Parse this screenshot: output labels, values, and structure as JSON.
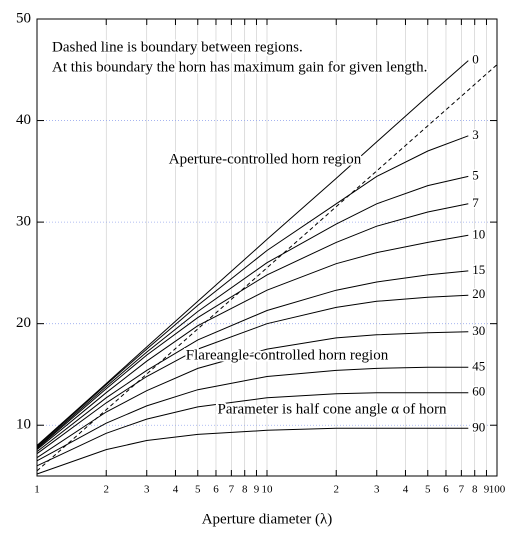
{
  "chart_data": {
    "type": "line",
    "xlabel": "Aperture diameter (λ)",
    "x": [
      1,
      2,
      3,
      5,
      10,
      20,
      30,
      50,
      75
    ],
    "series": [
      {
        "name": "0",
        "color": "#000000",
        "values": [
          8,
          14.1,
          17.7,
          22.2,
          28.3,
          34.3,
          37.9,
          42.4,
          45.9
        ]
      },
      {
        "name": "3",
        "color": "#000000",
        "values": [
          7.9,
          14,
          17.5,
          21.8,
          27.2,
          31.8,
          34.5,
          37,
          38.5
        ]
      },
      {
        "name": "5",
        "color": "#000000",
        "values": [
          7.8,
          13.8,
          17.2,
          21.2,
          26,
          29.8,
          31.8,
          33.6,
          34.5
        ]
      },
      {
        "name": "7",
        "color": "#000000",
        "values": [
          7.7,
          13.6,
          16.9,
          20.6,
          24.8,
          28,
          29.6,
          31,
          31.8
        ]
      },
      {
        "name": "10",
        "color": "#000000",
        "values": [
          7.6,
          13.2,
          16.3,
          19.8,
          23.3,
          25.9,
          27,
          28,
          28.7
        ]
      },
      {
        "name": "15",
        "color": "#000000",
        "values": [
          7.4,
          12.7,
          15.4,
          18.4,
          21.3,
          23.3,
          24.1,
          24.8,
          25.2
        ]
      },
      {
        "name": "20",
        "color": "#000000",
        "values": [
          7.2,
          12.2,
          14.8,
          17.5,
          20,
          21.6,
          22.2,
          22.6,
          22.8
        ]
      },
      {
        "name": "30",
        "color": "#000000",
        "values": [
          6.8,
          11.3,
          13.4,
          15.6,
          17.5,
          18.6,
          18.9,
          19.1,
          19.2
        ]
      },
      {
        "name": "45",
        "color": "#000000",
        "values": [
          6.5,
          10.2,
          11.9,
          13.5,
          14.8,
          15.4,
          15.6,
          15.7,
          15.7
        ]
      },
      {
        "name": "60",
        "color": "#000000",
        "values": [
          6,
          9.2,
          10.6,
          11.8,
          12.7,
          13.1,
          13.2,
          13.2,
          13.2
        ]
      },
      {
        "name": "90",
        "color": "#000000",
        "values": [
          5.2,
          7.6,
          8.5,
          9.1,
          9.5,
          9.7,
          9.7,
          9.7,
          9.7
        ]
      }
    ],
    "boundary": {
      "x": [
        1,
        100
      ],
      "values": [
        5.5,
        45.5
      ],
      "dashed": true,
      "color": "#000000"
    },
    "annotations": [
      "Dashed line is boundary between regions.",
      "At this boundary the horn has maximum gain for given length.",
      "Aperture-controlled horn region",
      "Flareangle-controlled horn region",
      "Parameter is half cone angle α of horn"
    ],
    "xscale": "log",
    "xlim": [
      1,
      100
    ],
    "xticks": [
      1,
      2,
      3,
      4,
      5,
      6,
      7,
      8,
      9,
      10,
      {
        "value": 20,
        "label": "2"
      },
      {
        "value": 30,
        "label": "3"
      },
      {
        "value": 40,
        "label": "4"
      },
      {
        "value": 50,
        "label": "5"
      },
      {
        "value": 60,
        "label": "6"
      },
      {
        "value": 70,
        "label": "7"
      },
      {
        "value": 80,
        "label": "8"
      },
      {
        "value": 90,
        "label": "9"
      },
      100
    ],
    "ylim": [
      5,
      50
    ],
    "yticks": [
      10,
      20,
      30,
      40,
      50
    ],
    "grid": true
  }
}
